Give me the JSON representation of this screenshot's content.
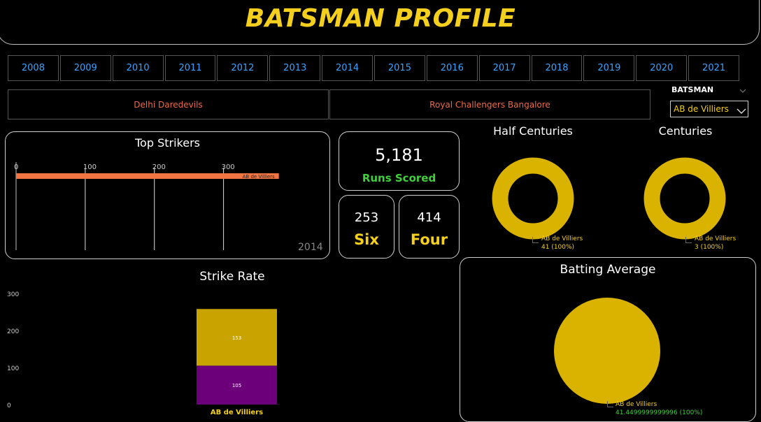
{
  "header": {
    "title": "BATSMAN PROFILE"
  },
  "years": [
    "2008",
    "2009",
    "2010",
    "2011",
    "2012",
    "2013",
    "2014",
    "2015",
    "2016",
    "2017",
    "2018",
    "2019",
    "2020",
    "2021"
  ],
  "teams": [
    "Delhi Daredevils",
    "Royal Challengers Bangalore"
  ],
  "slicer": {
    "label": "BATSMAN",
    "selected": "AB de Villiers"
  },
  "top_strikers": {
    "title": "Top Strikers",
    "year_label": "2014",
    "bar_label": "AB de Villiers"
  },
  "kpis": {
    "runs": {
      "value": "5,181",
      "label": "Runs Scored"
    },
    "six": {
      "value": "253",
      "label": "Six"
    },
    "four": {
      "value": "414",
      "label": "Four"
    }
  },
  "half_centuries": {
    "title": "Half Centuries",
    "legend_name": "AB de Villiers",
    "legend_value": "41 (100%)"
  },
  "centuries": {
    "title": "Centuries",
    "legend_name": "AB de Villiers",
    "legend_value": "3 (100%)"
  },
  "strike_rate": {
    "title": "Strike Rate"
  },
  "batting_average": {
    "title": "Batting Average",
    "legend_name": "AB de Villiers",
    "legend_value": "41.4499999999996 (100%)"
  },
  "colors": {
    "accent_yellow": "#f4cf1e",
    "gold": "#d9b300",
    "bar_orange": "#f07543",
    "purple": "#6b007a",
    "link_blue": "#3ba3ff",
    "team_red": "#ee6b45"
  },
  "chart_data": [
    {
      "type": "bar",
      "title": "Top Strikers",
      "categories": [
        "AB de Villiers"
      ],
      "values": [
        380
      ],
      "xlim": [
        0,
        440
      ],
      "x_ticks": [
        0,
        100,
        200,
        300
      ],
      "grid": true
    },
    {
      "type": "bar",
      "title": "Strike Rate",
      "categories": [
        "AB de Villiers"
      ],
      "series": [
        {
          "values": [
            105
          ],
          "color": "#6b007a"
        },
        {
          "values": [
            153
          ],
          "color": "#c9a400"
        }
      ],
      "ylim": [
        0,
        300
      ],
      "y_ticks": [
        0,
        100,
        200,
        300
      ]
    },
    {
      "type": "pie",
      "title": "Half Centuries",
      "categories": [
        "AB de Villiers"
      ],
      "values": [
        41
      ]
    },
    {
      "type": "pie",
      "title": "Centuries",
      "categories": [
        "AB de Villiers"
      ],
      "values": [
        3
      ]
    },
    {
      "type": "pie",
      "title": "Batting Average",
      "categories": [
        "AB de Villiers"
      ],
      "values": [
        41.4499999999996
      ]
    }
  ]
}
